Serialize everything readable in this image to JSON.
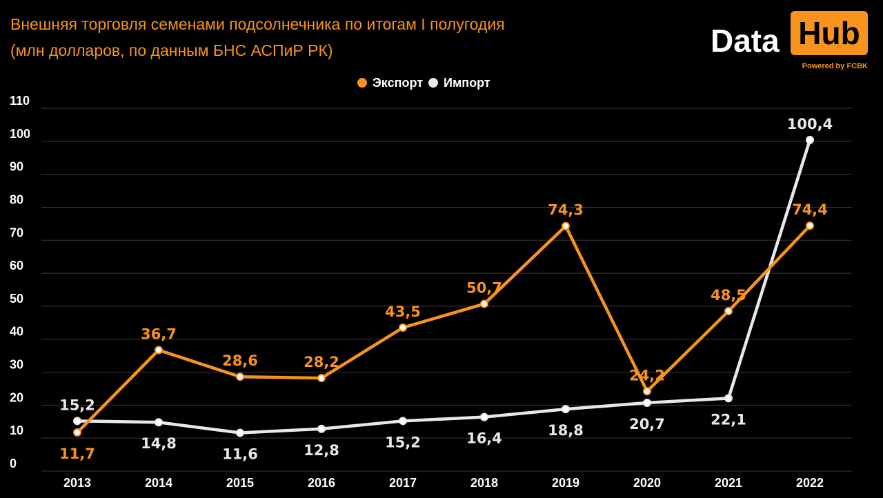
{
  "title": {
    "line1": "Внешняя торговля семенами подсолнечника по итогам I полугодия",
    "line2": "(млн долларов, по данным БНС АСПиР РК)"
  },
  "logo": {
    "word1": "Data",
    "word2": "Hub",
    "powered": "Powered by FCBK"
  },
  "colors": {
    "export": "#f7931e",
    "import": "#e8e8e8",
    "grid": "#3a3a3a",
    "background": "#000000"
  },
  "chart_data": {
    "type": "line",
    "title": "Внешняя торговля семенами подсолнечника по итогам I полугодия",
    "subtitle": "(млн долларов, по данным БНС АСПиР РК)",
    "xlabel": "",
    "ylabel": "",
    "x": [
      "2013",
      "2014",
      "2015",
      "2016",
      "2017",
      "2018",
      "2019",
      "2020",
      "2021",
      "2022"
    ],
    "ylim": [
      0,
      110
    ],
    "yticks": [
      0,
      10,
      20,
      30,
      40,
      50,
      60,
      70,
      80,
      90,
      100,
      110
    ],
    "grid": true,
    "legend_position": "top-center",
    "series": [
      {
        "name": "Экспорт",
        "values": [
          11.7,
          36.7,
          28.6,
          28.2,
          43.5,
          50.7,
          74.3,
          24.2,
          48.5,
          74.4
        ],
        "labels": [
          "11,7",
          "36,7",
          "28,6",
          "28,2",
          "43,5",
          "50,7",
          "74,3",
          "24,2",
          "48,5",
          "74,4"
        ],
        "label_position": [
          "below",
          "above",
          "above",
          "above",
          "above",
          "above",
          "above",
          "above",
          "above",
          "above"
        ]
      },
      {
        "name": "Импорт",
        "values": [
          15.2,
          14.8,
          11.6,
          12.8,
          15.2,
          16.4,
          18.8,
          20.7,
          22.1,
          100.4
        ],
        "labels": [
          "15,2",
          "14,8",
          "11,6",
          "12,8",
          "15,2",
          "16,4",
          "18,8",
          "20,7",
          "22,1",
          "100,4"
        ],
        "label_position": [
          "above",
          "below",
          "below",
          "below",
          "below",
          "below",
          "below",
          "below",
          "below",
          "above"
        ]
      }
    ]
  }
}
